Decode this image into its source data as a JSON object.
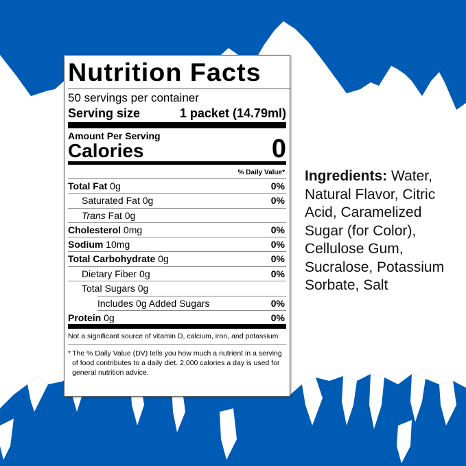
{
  "colors": {
    "sky_blue": "#005bb5"
  },
  "label": {
    "title": "Nutrition Facts",
    "servings": "50 servings per container",
    "serving_size_label": "Serving size",
    "serving_size_value": "1 packet (14.79ml)",
    "amount_per_serving": "Amount Per Serving",
    "calories_label": "Calories",
    "calories_value": "0",
    "dv_header": "% Daily Value*",
    "rows": [
      {
        "name": "Total Fat",
        "amount": " 0g",
        "dv": "0%"
      },
      {
        "name": "Saturated Fat",
        "amount": " 0g",
        "dv": "0%"
      },
      {
        "name": "Trans",
        "amount": " Fat 0g",
        "dv": ""
      },
      {
        "name": "Cholesterol",
        "amount": " 0mg",
        "dv": "0%"
      },
      {
        "name": "Sodium",
        "amount": " 10mg",
        "dv": "0%"
      },
      {
        "name": "Total Carbohydrate",
        "amount": " 0g",
        "dv": "0%"
      },
      {
        "name": "Dietary Fiber",
        "amount": " 0g",
        "dv": "0%"
      },
      {
        "name": "Total Sugars",
        "amount": " 0g",
        "dv": ""
      },
      {
        "name": "Includes 0g Added Sugars",
        "amount": "",
        "dv": "0%"
      },
      {
        "name": "Protein",
        "amount": " 0g",
        "dv": "0%"
      }
    ],
    "note": "Not a significant source of vitamin D, calcium, iron, and potassium",
    "footnote_mark": "*",
    "footnote": "The % Daily Value (DV) tells you how much a nutrient in a serving of food contributes to a daily diet. 2,000 calories a day is used for general nutrition advice."
  },
  "ingredients": {
    "label": "Ingredients:",
    "text": " Water, Natural Flavor, Citric Acid, Caramelized Sugar (for Color), Cellulose Gum, Sucralose, Potassium Sorbate, Salt"
  }
}
